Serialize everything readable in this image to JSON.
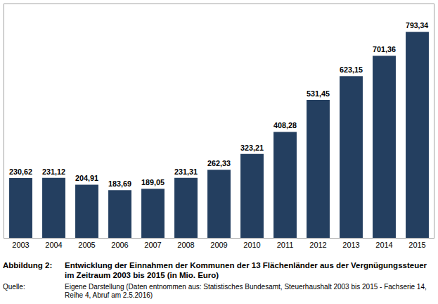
{
  "chart_data": {
    "type": "bar",
    "title": "Entwicklung der Einnahmen der Kommunen der 13 Flächenländer aus der Vergnügungssteuer im Zeitraum 2003 bis 2015 (in Mio. Euro)",
    "annotations": [
      "Abbildung 2:",
      "Quelle:",
      "Eigene Darstellung (Daten entnommen aus: Statistisches Bundesamt, Steuerhaushalt 2003 bis 2015 - Fachserie 14, Reihe 4, Abruf am 2.5.2016)"
    ],
    "categories": [
      "2003",
      "2004",
      "2005",
      "2006",
      "2007",
      "2008",
      "2009",
      "2010",
      "2011",
      "2012",
      "2013",
      "2014",
      "2015"
    ],
    "values": [
      230.62,
      231.12,
      204.91,
      183.69,
      189.05,
      231.31,
      262.33,
      323.21,
      408.28,
      531.45,
      623.15,
      701.36,
      793.34
    ],
    "value_labels": [
      "230,62",
      "231,12",
      "204,91",
      "183,69",
      "189,05",
      "231,31",
      "262,33",
      "323,21",
      "408,28",
      "531,45",
      "623,15",
      "701,36",
      "793,34"
    ],
    "color": "#243f60",
    "ylim": [
      0,
      900
    ],
    "grid": false,
    "data_labels": true,
    "tick_labels": "x"
  }
}
